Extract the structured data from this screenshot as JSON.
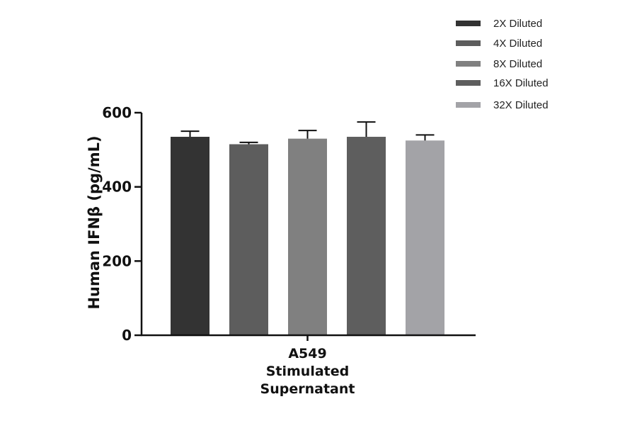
{
  "chart_data": {
    "type": "bar",
    "categories": [
      "A549\nStimulated\nSupernatant"
    ],
    "category_label_lines": [
      "A549",
      "Stimulated",
      "Supernatant"
    ],
    "series": [
      {
        "name": "2X Diluted",
        "values": [
          535
        ],
        "error": [
          15
        ],
        "color": "#333333"
      },
      {
        "name": "4X Diluted",
        "values": [
          515
        ],
        "error": [
          5
        ],
        "color": "#5d5d5d"
      },
      {
        "name": "8X Diluted",
        "values": [
          530
        ],
        "error": [
          22
        ],
        "color": "#808080"
      },
      {
        "name": "16X Diluted",
        "values": [
          535
        ],
        "error": [
          40
        ],
        "color": "#5e5e5e"
      },
      {
        "name": "32X Diluted",
        "values": [
          525
        ],
        "error": [
          15
        ],
        "color": "#a3a3a7"
      }
    ],
    "ylabel": "Human IFNβ (pg/mL)",
    "xlabel": "",
    "ylim": [
      0,
      600
    ],
    "yticks": [
      0,
      200,
      400,
      600
    ],
    "legend_position": "top-right",
    "grid": false
  }
}
